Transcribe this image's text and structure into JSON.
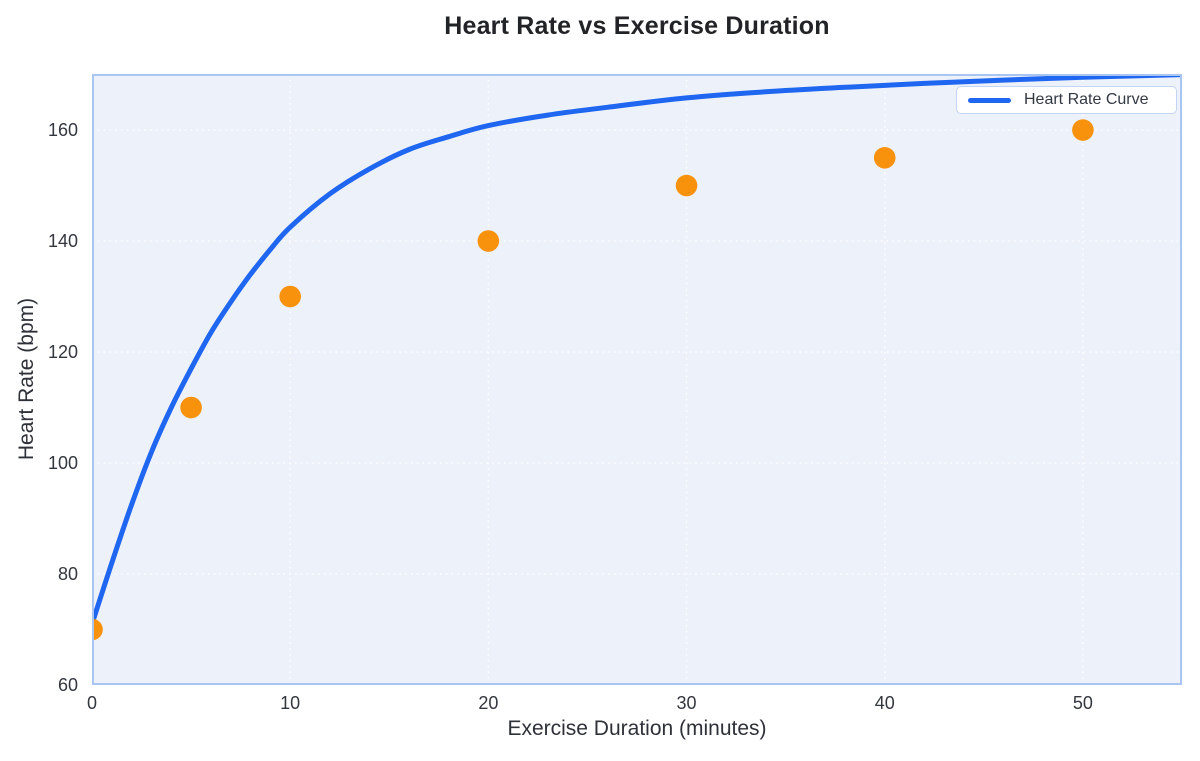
{
  "chart_data": {
    "type": "scatter",
    "title": "Heart Rate vs Exercise Duration",
    "xlabel": "Exercise Duration (minutes)",
    "ylabel": "Heart Rate (bpm)",
    "xlim": [
      0,
      55
    ],
    "ylim": [
      60,
      170.1
    ],
    "xticks": [
      0,
      10,
      20,
      30,
      40,
      50
    ],
    "yticks": [
      60,
      80,
      100,
      120,
      140,
      160
    ],
    "grid": "dotted",
    "legend": {
      "position": "top-right",
      "entries": [
        {
          "label": "Heart Rate Curve",
          "type": "line",
          "color": "#1F66F0"
        }
      ]
    },
    "series": [
      {
        "kind": "line",
        "label": "Heart Rate Curve",
        "color": "#1F66F0",
        "stroke_width": 5,
        "points": [
          [
            0,
            71
          ],
          [
            1,
            82
          ],
          [
            2,
            92.5
          ],
          [
            3,
            102
          ],
          [
            4,
            110
          ],
          [
            5,
            117
          ],
          [
            6,
            123.5
          ],
          [
            7,
            129
          ],
          [
            8,
            134
          ],
          [
            9,
            138.5
          ],
          [
            10,
            142.5
          ],
          [
            12,
            148.5
          ],
          [
            14,
            153
          ],
          [
            16,
            156.5
          ],
          [
            18,
            158.8
          ],
          [
            20,
            160.8
          ],
          [
            23,
            162.7
          ],
          [
            26,
            164.1
          ],
          [
            30,
            165.8
          ],
          [
            34,
            166.9
          ],
          [
            38,
            167.7
          ],
          [
            42,
            168.4
          ],
          [
            46,
            169.0
          ],
          [
            50,
            169.5
          ],
          [
            55,
            170.0
          ]
        ]
      },
      {
        "kind": "scatter",
        "label": null,
        "color": "#F8920D",
        "radius": 10.8,
        "points": [
          [
            0,
            70
          ],
          [
            5,
            110
          ],
          [
            10,
            130
          ],
          [
            20,
            140
          ],
          [
            30,
            150
          ],
          [
            40,
            155
          ],
          [
            50,
            160
          ]
        ]
      }
    ],
    "colors": {
      "plot_bg": "#EDF1FA",
      "plot_border": "#A9C5F2",
      "grid": "#FFFFFF",
      "title": "#222327",
      "tick": "#33373E",
      "axis_label": "#2E3238",
      "legend_border": "#C3D5F4",
      "legend_text": "#333943"
    }
  }
}
